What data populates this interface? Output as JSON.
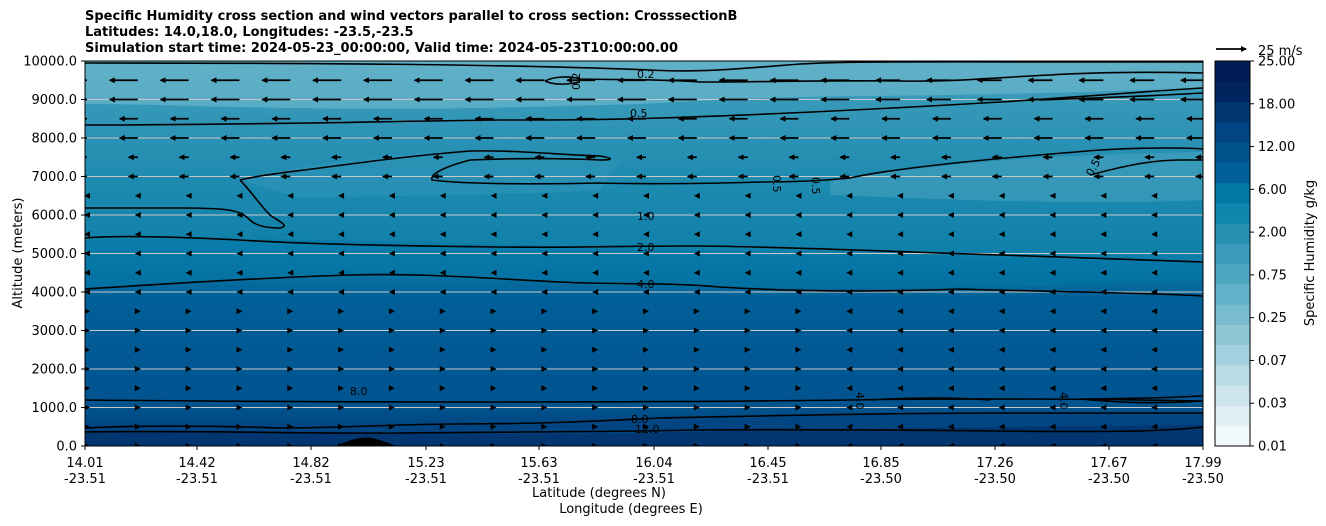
{
  "title_lines": [
    "Specific Humidity cross section and wind vectors parallel to cross section: CrosssectionB",
    "Latitudes: 14.0,18.0, Longitudes: -23.5,-23.5",
    "Simulation start time: 2024-05-23_00:00:00, Valid time: 2024-05-23T10:00:00.00"
  ],
  "chart_data": {
    "type": "contourf_cross_section",
    "title": "Specific Humidity cross section and wind vectors parallel to cross section: CrosssectionB",
    "ylabel": "Altitude (meters)",
    "xlabel_lat": "Latitude (degrees N)",
    "xlabel_lon": "Longitude (degrees E)",
    "ylim": [
      0,
      10000
    ],
    "y_ticks": [
      "0.0",
      "1000.0",
      "2000.0",
      "3000.0",
      "4000.0",
      "5000.0",
      "6000.0",
      "7000.0",
      "8000.0",
      "9000.0",
      "10000.0"
    ],
    "x_ticks": [
      {
        "lat": "14.01",
        "lon": "-23.51"
      },
      {
        "lat": "14.42",
        "lon": "-23.51"
      },
      {
        "lat": "14.82",
        "lon": "-23.51"
      },
      {
        "lat": "15.23",
        "lon": "-23.51"
      },
      {
        "lat": "15.63",
        "lon": "-23.51"
      },
      {
        "lat": "16.04",
        "lon": "-23.51"
      },
      {
        "lat": "16.45",
        "lon": "-23.51"
      },
      {
        "lat": "16.85",
        "lon": "-23.50"
      },
      {
        "lat": "17.26",
        "lon": "-23.50"
      },
      {
        "lat": "17.67",
        "lon": "-23.50"
      },
      {
        "lat": "17.99",
        "lon": "-23.50"
      }
    ],
    "colorbar": {
      "label": "Specific Humidity g/kg",
      "levels": [
        0.01,
        0.02,
        0.03,
        0.05,
        0.07,
        0.1,
        0.25,
        0.5,
        0.75,
        1.0,
        2.0,
        4.0,
        6.0,
        8.0,
        12.0,
        15.0,
        18.0,
        21.0,
        25.0
      ],
      "tick_labels": [
        "0.01",
        "0.03",
        "0.07",
        "0.25",
        "0.75",
        "2.00",
        "6.00",
        "12.00",
        "18.00",
        "25.00"
      ],
      "colors": [
        "#f2f9fb",
        "#e0eff3",
        "#cce5ec",
        "#b8dbe5",
        "#a3d0de",
        "#8ec6d6",
        "#79bccf",
        "#63b1c8",
        "#4ea6c0",
        "#3a9bba",
        "#2690b3",
        "#0f86ad",
        "#0177a6",
        "#015f98",
        "#01538e",
        "#014582",
        "#013671",
        "#00245e",
        "#001c54"
      ]
    },
    "contour_labels": [
      "0.2",
      "0.2",
      "0.5",
      "1.0",
      "2.0",
      "4.0",
      "8.0",
      "12.0",
      "8.0",
      "0.5",
      "0.5",
      "0.5",
      "4.0",
      "4.0"
    ],
    "quiver_key": "25 m/s"
  }
}
